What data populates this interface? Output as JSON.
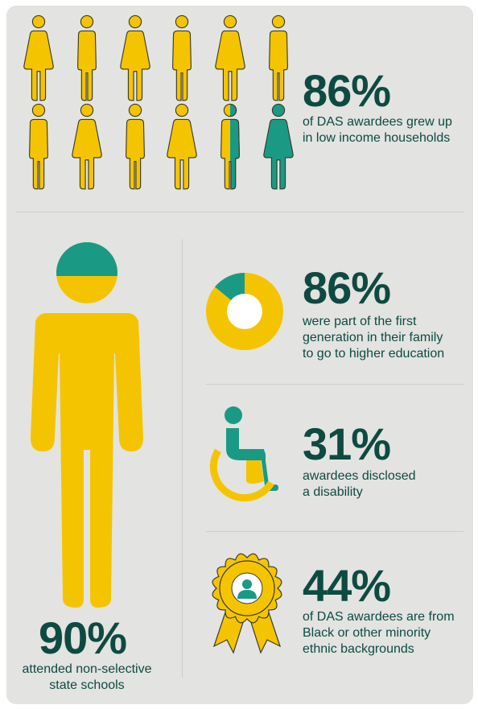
{
  "colors": {
    "gold": "#f5c400",
    "teal": "#1a9a84",
    "outline": "#3a3a2a",
    "dark_text": "#0d4a42",
    "panel": "#e3e3e1"
  },
  "stat_low_income": {
    "value": "86%",
    "caption_line1": "of DAS awardees grew up",
    "caption_line2": "in low income households",
    "fraction": 0.86
  },
  "stat_non_selective": {
    "value": "90%",
    "caption_line1": "attended non-selective",
    "caption_line2": "state schools",
    "fraction": 0.9
  },
  "stat_first_generation": {
    "value": "86%",
    "caption_line1": "were part of the first",
    "caption_line2": "generation in their family",
    "caption_line3": "to go to higher education",
    "fraction": 0.86
  },
  "stat_disability": {
    "value": "31%",
    "caption_line1": "awardees disclosed",
    "caption_line2": "a disability",
    "fraction": 0.31
  },
  "stat_minority": {
    "value": "44%",
    "caption_line1": "of DAS awardees are from",
    "caption_line2": "Black or other minority",
    "caption_line3": "ethnic backgrounds",
    "fraction": 0.44
  },
  "icons": [
    "person-icon",
    "large-person-icon",
    "donut-chart-icon",
    "wheelchair-icon",
    "award-rosette-icon"
  ]
}
